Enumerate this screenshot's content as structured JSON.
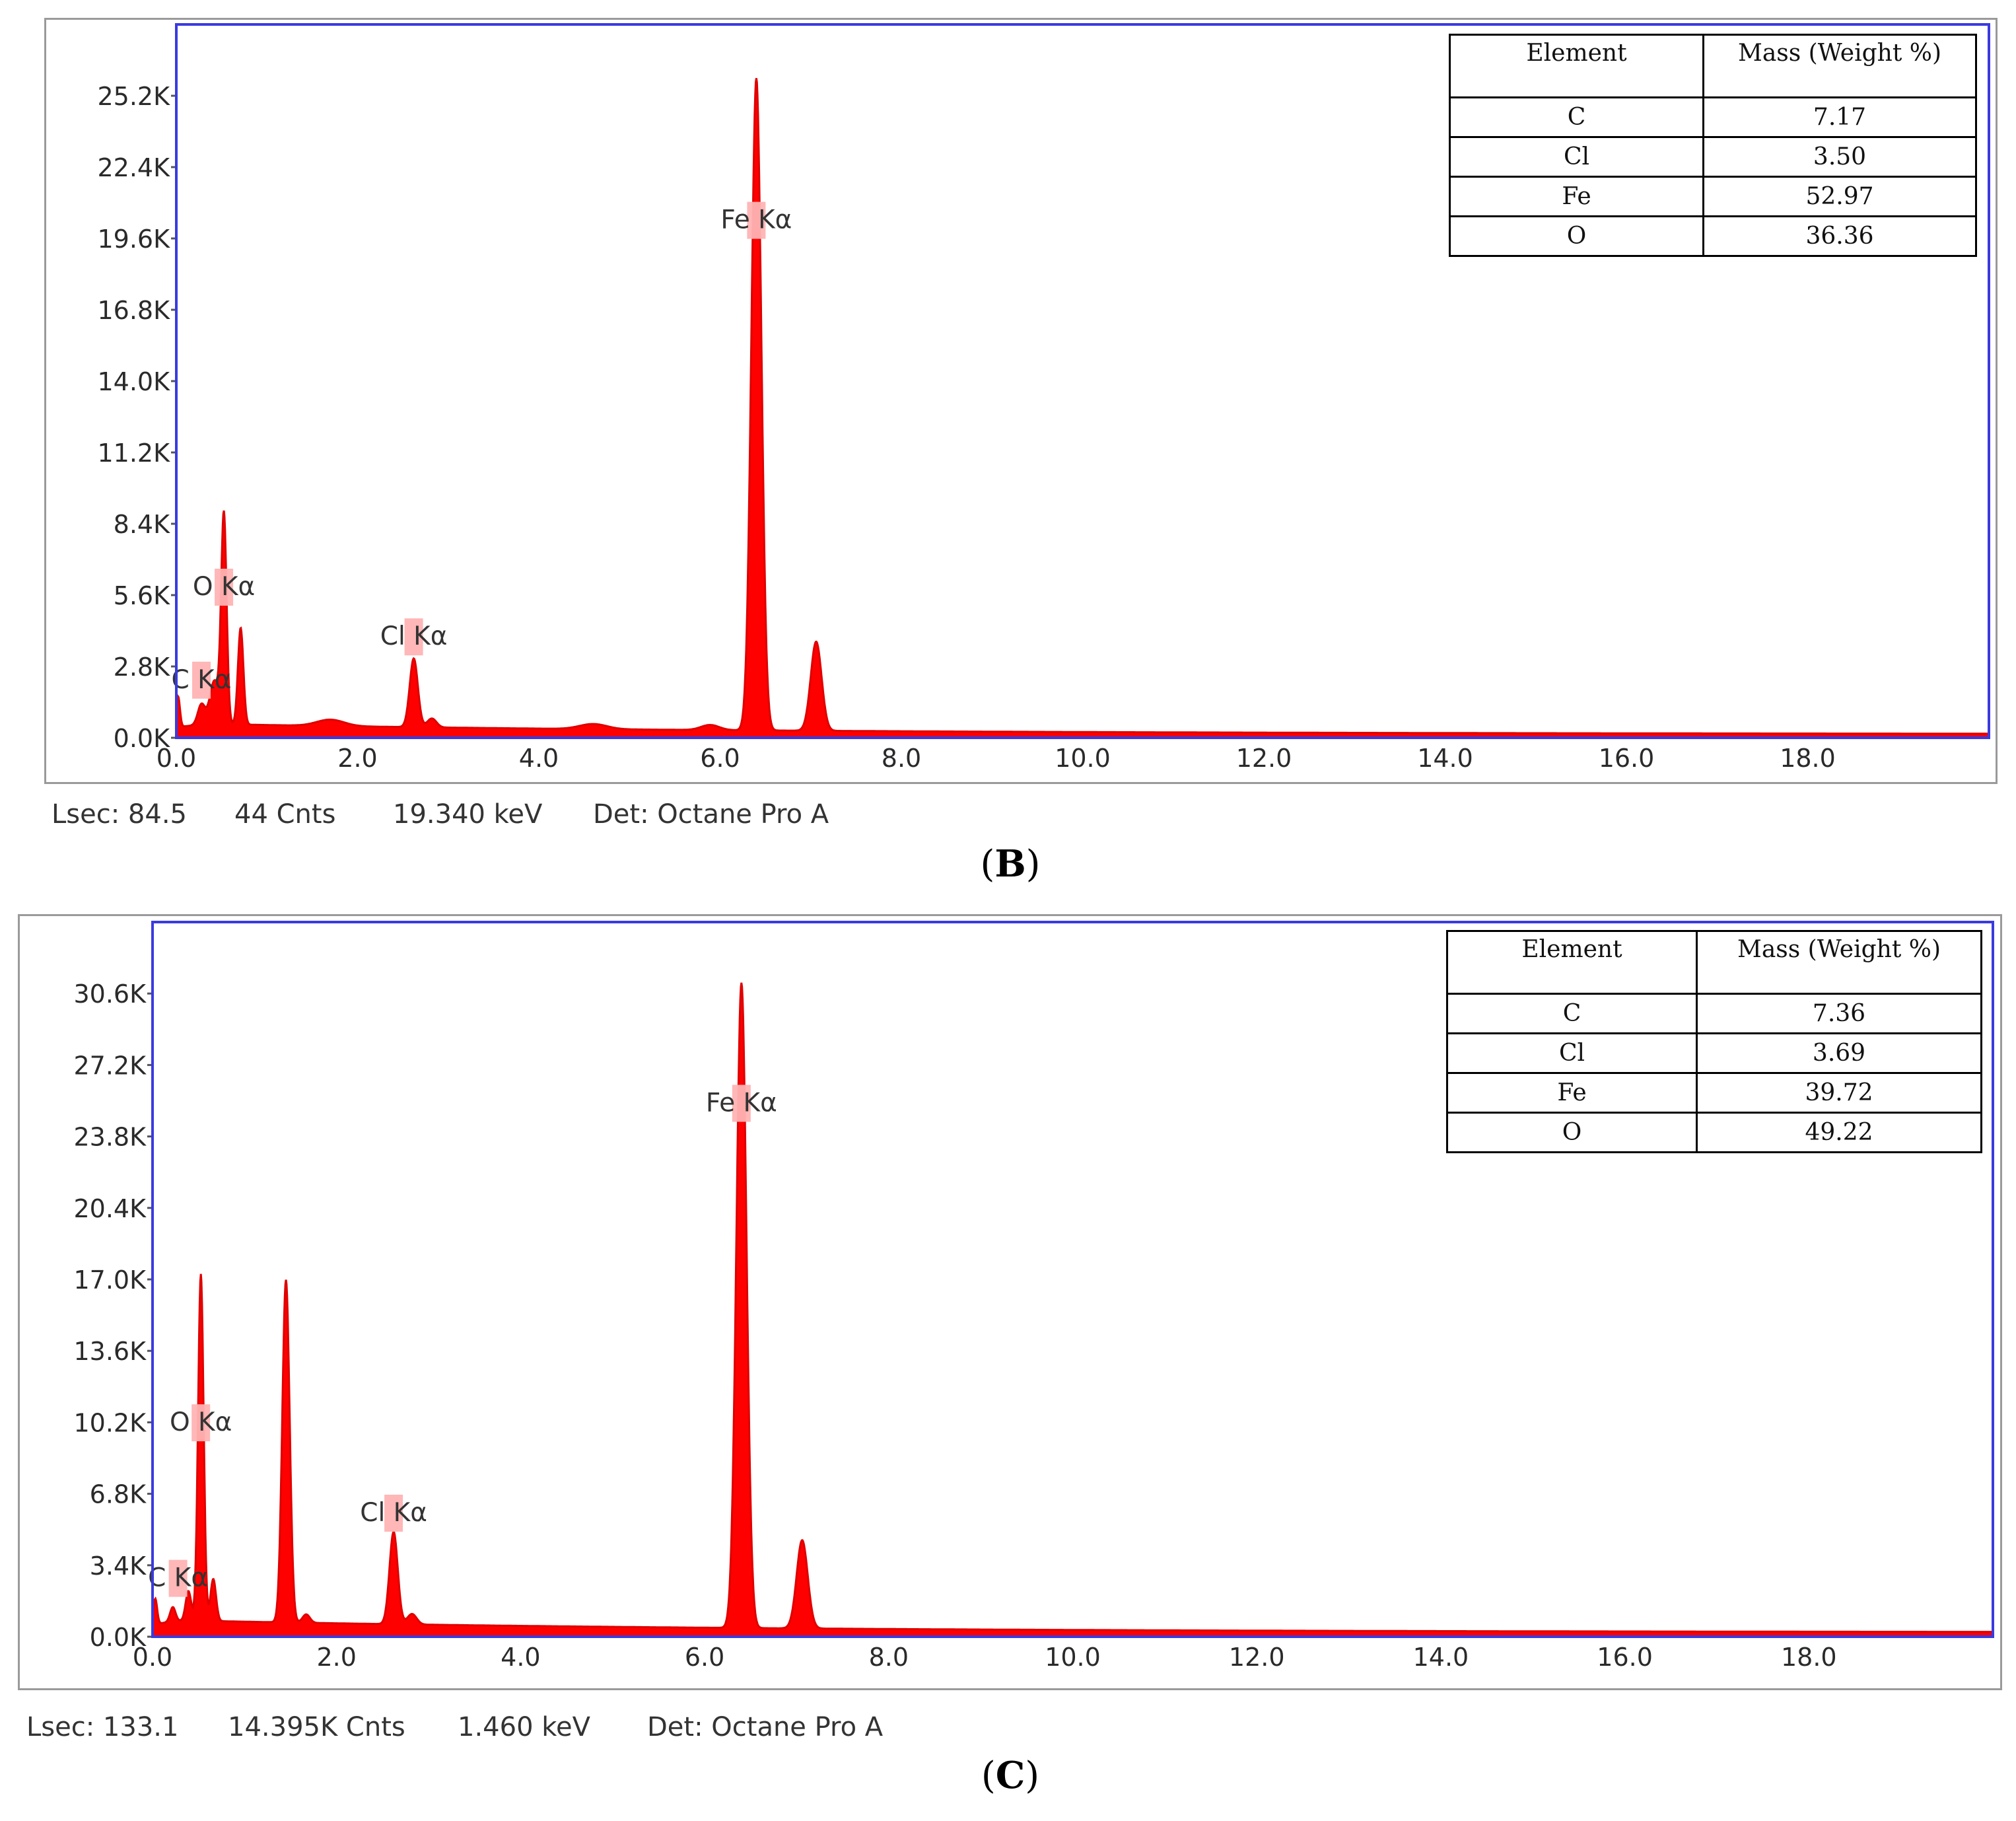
{
  "chart_data": [
    {
      "panel": "B",
      "type": "area",
      "x_unit": "keV",
      "xlim": [
        0,
        20
      ],
      "ylim": [
        0,
        28000
      ],
      "x_ticks": [
        "0.0",
        "2.0",
        "4.0",
        "6.0",
        "8.0",
        "10.0",
        "12.0",
        "14.0",
        "16.0",
        "18.0"
      ],
      "y_ticks": [
        "0.0K",
        "2.8K",
        "5.6K",
        "8.4K",
        "11.2K",
        "14.0K",
        "16.8K",
        "19.6K",
        "22.4K",
        "25.2K"
      ],
      "color": "#ff0000",
      "background_counts": 420,
      "peaks": [
        {
          "x": 0.02,
          "y": 1200,
          "w": 0.02
        },
        {
          "x": 0.277,
          "y": 800,
          "w": 0.04
        },
        {
          "x": 0.42,
          "y": 1700,
          "w": 0.05
        },
        {
          "x": 0.525,
          "y": 8200,
          "w": 0.03
        },
        {
          "x": 0.71,
          "y": 3800,
          "w": 0.03
        },
        {
          "x": 1.7,
          "y": 250,
          "w": 0.15
        },
        {
          "x": 2.62,
          "y": 2700,
          "w": 0.045
        },
        {
          "x": 2.82,
          "y": 350,
          "w": 0.05
        },
        {
          "x": 4.6,
          "y": 200,
          "w": 0.15
        },
        {
          "x": 5.89,
          "y": 200,
          "w": 0.1
        },
        {
          "x": 6.4,
          "y": 25600,
          "w": 0.055
        },
        {
          "x": 7.06,
          "y": 3500,
          "w": 0.06
        }
      ],
      "peak_labels": [
        {
          "text": "Fe Kα",
          "x": 6.4,
          "y": 20000
        },
        {
          "text": "O  Kα",
          "x": 0.525,
          "y": 5600
        },
        {
          "text": "C  Kα",
          "x": 0.277,
          "y": 1950
        },
        {
          "text": "Cl Kα",
          "x": 2.62,
          "y": 3650
        }
      ],
      "table": {
        "headers": [
          "Element",
          "Mass (Weight %)"
        ],
        "rows": [
          [
            "C",
            "7.17"
          ],
          [
            "Cl",
            "3.50"
          ],
          [
            "Fe",
            "52.97"
          ],
          [
            "O",
            "36.36"
          ]
        ]
      },
      "status": {
        "lsec": "Lsec: 84.5",
        "cnts": "44 Cnts",
        "kev": "19.340 keV",
        "det": "Det: Octane Pro A"
      },
      "caption": "B"
    },
    {
      "panel": "C",
      "type": "area",
      "x_unit": "keV",
      "xlim": [
        0,
        20
      ],
      "ylim": [
        0,
        34000
      ],
      "x_ticks": [
        "0.0",
        "2.0",
        "4.0",
        "6.0",
        "8.0",
        "10.0",
        "12.0",
        "14.0",
        "16.0",
        "18.0"
      ],
      "y_ticks": [
        "0.0K",
        "3.4K",
        "6.8K",
        "10.2K",
        "13.6K",
        "17.0K",
        "20.4K",
        "23.8K",
        "27.2K",
        "30.6K"
      ],
      "color": "#ff0000",
      "background_counts": 600,
      "peaks": [
        {
          "x": 0.03,
          "y": 1200,
          "w": 0.02
        },
        {
          "x": 0.22,
          "y": 700,
          "w": 0.03
        },
        {
          "x": 0.39,
          "y": 1400,
          "w": 0.03
        },
        {
          "x": 0.525,
          "y": 16500,
          "w": 0.03
        },
        {
          "x": 0.66,
          "y": 2000,
          "w": 0.03
        },
        {
          "x": 1.45,
          "y": 16300,
          "w": 0.04
        },
        {
          "x": 1.67,
          "y": 400,
          "w": 0.04
        },
        {
          "x": 2.62,
          "y": 4400,
          "w": 0.045
        },
        {
          "x": 2.82,
          "y": 500,
          "w": 0.05
        },
        {
          "x": 6.4,
          "y": 30700,
          "w": 0.055
        },
        {
          "x": 7.06,
          "y": 4200,
          "w": 0.06
        }
      ],
      "peak_labels": [
        {
          "text": "Fe Kα",
          "x": 6.4,
          "y": 25000
        },
        {
          "text": "O  Kα",
          "x": 0.525,
          "y": 9800
        },
        {
          "text": "C  Kα",
          "x": 0.277,
          "y": 2400
        },
        {
          "text": "Cl Kα",
          "x": 2.62,
          "y": 5500
        }
      ],
      "table": {
        "headers": [
          "Element",
          "Mass (Weight %)"
        ],
        "rows": [
          [
            "C",
            "7.36"
          ],
          [
            "Cl",
            "3.69"
          ],
          [
            "Fe",
            "39.72"
          ],
          [
            "O",
            "49.22"
          ]
        ]
      },
      "status": {
        "lsec": "Lsec: 133.1",
        "cnts": "14.395K Cnts",
        "kev": "1.460 keV",
        "det": "Det: Octane Pro A"
      },
      "caption": "C"
    }
  ]
}
